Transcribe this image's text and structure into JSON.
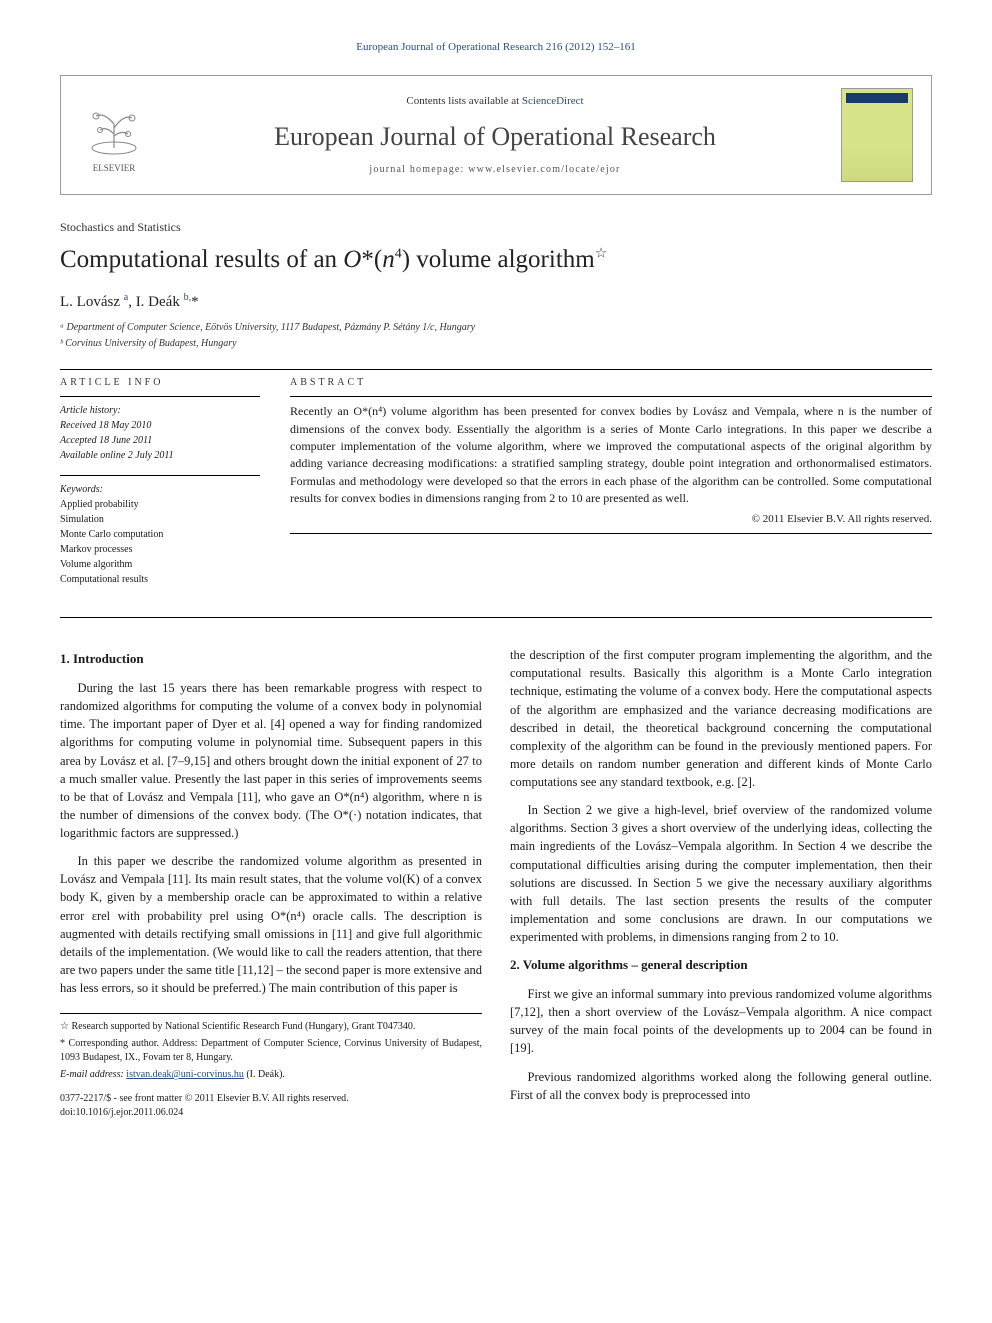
{
  "journal_ref": "European Journal of Operational Research 216 (2012) 152–161",
  "header": {
    "contents_prefix": "Contents lists available at ",
    "contents_link": "ScienceDirect",
    "journal_name": "European Journal of Operational Research",
    "homepage_label": "journal homepage: www.elsevier.com/locate/ejor",
    "publisher": "ELSEVIER"
  },
  "section_label": "Stochastics and Statistics",
  "title_html": "Computational results of an <i>O</i>*(<i>n</i><sup>4</sup>) volume algorithm",
  "title_star": "☆",
  "authors_html": "L. Lovász <sup>a</sup>, I. Deák <sup>b,</sup>*",
  "affiliations": [
    "ᵃ Department of Computer Science, Eötvös University, 1117 Budapest, Pázmány P. Sétány 1/c, Hungary",
    "ᵇ Corvinus University of Budapest, Hungary"
  ],
  "info": {
    "heading": "ARTICLE INFO",
    "history_label": "Article history:",
    "history": [
      "Received 18 May 2010",
      "Accepted 18 June 2011",
      "Available online 2 July 2011"
    ],
    "keywords_label": "Keywords:",
    "keywords": [
      "Applied probability",
      "Simulation",
      "Monte Carlo computation",
      "Markov processes",
      "Volume algorithm",
      "Computational results"
    ]
  },
  "abstract": {
    "heading": "ABSTRACT",
    "text": "Recently an O*(n⁴) volume algorithm has been presented for convex bodies by Lovász and Vempala, where n is the number of dimensions of the convex body. Essentially the algorithm is a series of Monte Carlo integrations. In this paper we describe a computer implementation of the volume algorithm, where we improved the computational aspects of the original algorithm by adding variance decreasing modifications: a stratified sampling strategy, double point integration and orthonormalised estimators. Formulas and methodology were developed so that the errors in each phase of the algorithm can be controlled. Some computational results for convex bodies in dimensions ranging from 2 to 10 are presented as well.",
    "copyright": "© 2011 Elsevier B.V. All rights reserved."
  },
  "body": {
    "sec1_title": "1. Introduction",
    "sec1_p1": "During the last 15 years there has been remarkable progress with respect to randomized algorithms for computing the volume of a convex body in polynomial time. The important paper of Dyer et al. [4] opened a way for finding randomized algorithms for computing volume in polynomial time. Subsequent papers in this area by Lovász et al. [7–9,15] and others brought down the initial exponent of 27 to a much smaller value. Presently the last paper in this series of improvements seems to be that of Lovász and Vempala [11], who gave an O*(n⁴) algorithm, where n is the number of dimensions of the convex body. (The O*(·) notation indicates, that logarithmic factors are suppressed.)",
    "sec1_p2": "In this paper we describe the randomized volume algorithm as presented in Lovász and Vempala [11]. Its main result states, that the volume vol(K) of a convex body K, given by a membership oracle can be approximated to within a relative error εrel with probability prel using O*(n⁴) oracle calls. The description is augmented with details rectifying small omissions in [11] and give full algorithmic details of the implementation. (We would like to call the readers attention, that there are two papers under the same title [11,12] – the second paper is more extensive and has less errors, so it should be preferred.) The main contribution of this paper is",
    "sec1_p3": "the description of the first computer program implementing the algorithm, and the computational results. Basically this algorithm is a Monte Carlo integration technique, estimating the volume of a convex body. Here the computational aspects of the algorithm are emphasized and the variance decreasing modifications are described in detail, the theoretical background concerning the computational complexity of the algorithm can be found in the previously mentioned papers. For more details on random number generation and different kinds of Monte Carlo computations see any standard textbook, e.g. [2].",
    "sec1_p4": "In Section 2 we give a high-level, brief overview of the randomized volume algorithms. Section 3 gives a short overview of the underlying ideas, collecting the main ingredients of the Lovász–Vempala algorithm. In Section 4 we describe the computational difficulties arising during the computer implementation, then their solutions are discussed. In Section 5 we give the necessary auxiliary algorithms with full details. The last section presents the results of the computer implementation and some conclusions are drawn. In our computations we experimented with problems, in dimensions ranging from 2 to 10.",
    "sec2_title": "2. Volume algorithms – general description",
    "sec2_p1": "First we give an informal summary into previous randomized volume algorithms [7,12], then a short overview of the Lovász–Vempala algorithm. A nice compact survey of the main focal points of the developments up to 2004 can be found in [19].",
    "sec2_p2": "Previous randomized algorithms worked along the following general outline. First of all the convex body is preprocessed into"
  },
  "footnotes": {
    "grant": "☆ Research supported by National Scientific Research Fund (Hungary), Grant T047340.",
    "corresponding": "* Corresponding author. Address: Department of Computer Science, Corvinus University of Budapest, 1093 Budapest, IX., Fovam ter 8, Hungary.",
    "email_label": "E-mail address:",
    "email": "istvan.deak@uni-corvinus.hu",
    "email_suffix": "(I. Deák)."
  },
  "doi": {
    "line1": "0377-2217/$ - see front matter © 2011 Elsevier B.V. All rights reserved.",
    "line2": "doi:10.1016/j.ejor.2011.06.024"
  }
}
